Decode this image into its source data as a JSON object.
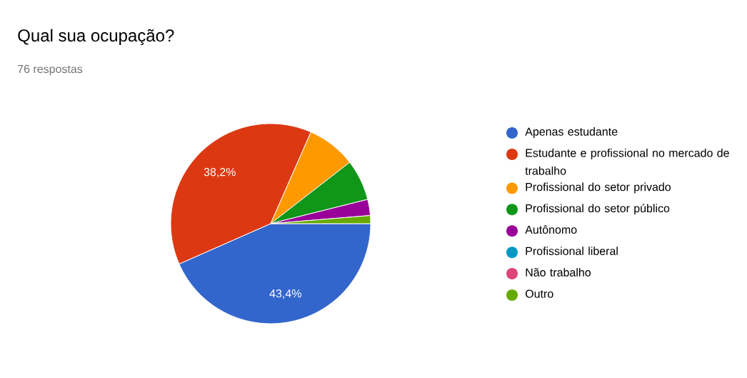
{
  "chart_data": {
    "type": "pie",
    "title": "Qual sua ocupação?",
    "subtitle": "76 respostas",
    "categories": [
      "Apenas estudante",
      "Estudante e profissional no mercado de trabalho",
      "Profissional do setor privado",
      "Profissional do setor público",
      "Autônomo",
      "Profissional liberal",
      "Não trabalho",
      "Outro"
    ],
    "values": [
      43.4,
      38.2,
      7.9,
      6.6,
      2.6,
      0,
      0,
      1.3
    ],
    "colors": [
      "#3366cc",
      "#dc3912",
      "#ff9900",
      "#109618",
      "#990099",
      "#0099c6",
      "#dd4477",
      "#66aa00"
    ],
    "value_labels": [
      "43,4%",
      "38,2%",
      null,
      null,
      null,
      null,
      null,
      null
    ],
    "legend": "right"
  }
}
